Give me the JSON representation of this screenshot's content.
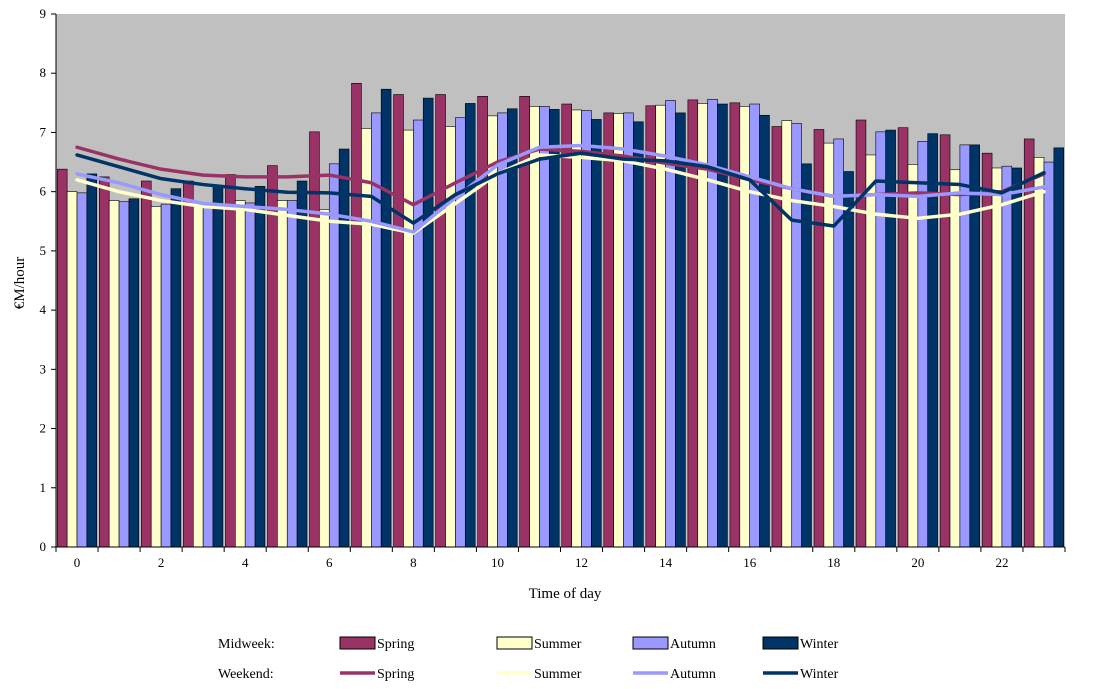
{
  "chart_data": {
    "type": "bar",
    "xlabel": "Time of day",
    "ylabel": "€M/hour",
    "ylim": [
      0,
      9
    ],
    "yticks": [
      "0",
      "1",
      "2",
      "3",
      "4",
      "5",
      "6",
      "7",
      "8",
      "9"
    ],
    "x": [
      0,
      1,
      2,
      3,
      4,
      5,
      6,
      7,
      8,
      9,
      10,
      11,
      12,
      13,
      14,
      15,
      16,
      17,
      18,
      19,
      20,
      21,
      22,
      23
    ],
    "xtick_labels": [
      "0",
      "2",
      "4",
      "6",
      "8",
      "10",
      "12",
      "14",
      "16",
      "18",
      "20",
      "22"
    ],
    "grid": false,
    "plot_background": "#c0c0c0",
    "bar_series": [
      {
        "name": "Spring",
        "color": "#993366",
        "values": [
          6.38,
          6.25,
          6.18,
          6.18,
          6.29,
          6.44,
          7.01,
          7.83,
          7.64,
          7.64,
          7.61,
          7.61,
          7.48,
          7.33,
          7.45,
          7.55,
          7.5,
          7.1,
          7.05,
          7.21,
          7.08,
          6.96,
          6.65,
          6.89
        ]
      },
      {
        "name": "Summer",
        "color": "#ffffcc",
        "values": [
          6.0,
          5.85,
          5.75,
          5.75,
          5.85,
          5.85,
          5.7,
          7.07,
          7.04,
          7.1,
          7.28,
          7.44,
          7.38,
          7.32,
          7.46,
          7.49,
          7.44,
          7.2,
          6.82,
          6.62,
          6.46,
          6.37,
          6.4,
          6.58
        ]
      },
      {
        "name": "Autumn",
        "color": "#9999ff",
        "values": [
          5.98,
          5.83,
          5.79,
          5.74,
          5.81,
          5.85,
          6.47,
          7.33,
          7.21,
          7.25,
          7.33,
          7.44,
          7.37,
          7.33,
          7.54,
          7.56,
          7.48,
          7.15,
          6.89,
          7.01,
          6.85,
          6.79,
          6.43,
          6.5
        ]
      },
      {
        "name": "Winter",
        "color": "#003366",
        "values": [
          6.3,
          5.88,
          6.05,
          6.09,
          6.09,
          6.18,
          6.72,
          7.73,
          7.58,
          7.49,
          7.4,
          7.39,
          7.22,
          7.18,
          7.33,
          7.48,
          7.29,
          6.47,
          6.34,
          7.04,
          6.98,
          6.79,
          6.4,
          6.74
        ]
      }
    ],
    "line_series": [
      {
        "name": "Spring",
        "color": "#993366",
        "values": [
          6.75,
          6.55,
          6.38,
          6.28,
          6.25,
          6.25,
          6.28,
          6.15,
          5.78,
          6.15,
          6.5,
          6.72,
          6.68,
          6.6,
          6.48,
          6.38,
          6.2,
          6.05,
          5.92,
          5.95,
          5.98,
          5.95,
          6.0,
          6.3
        ]
      },
      {
        "name": "Summer",
        "color": "#ffffcc",
        "values": [
          6.2,
          6.0,
          5.85,
          5.75,
          5.7,
          5.6,
          5.5,
          5.45,
          5.3,
          5.8,
          6.3,
          6.62,
          6.58,
          6.52,
          6.38,
          6.2,
          6.0,
          5.85,
          5.75,
          5.62,
          5.55,
          5.62,
          5.78,
          6.0
        ]
      },
      {
        "name": "Autumn",
        "color": "#9999ff",
        "values": [
          6.3,
          6.15,
          5.95,
          5.8,
          5.75,
          5.7,
          5.62,
          5.5,
          5.32,
          5.9,
          6.45,
          6.75,
          6.78,
          6.72,
          6.6,
          6.45,
          6.25,
          6.05,
          5.92,
          5.95,
          5.92,
          5.98,
          5.95,
          6.08
        ]
      },
      {
        "name": "Winter",
        "color": "#003366",
        "values": [
          6.62,
          6.42,
          6.22,
          6.12,
          6.05,
          5.99,
          5.98,
          5.92,
          5.47,
          5.95,
          6.3,
          6.55,
          6.65,
          6.55,
          6.52,
          6.42,
          6.2,
          5.52,
          5.42,
          6.18,
          6.15,
          6.12,
          5.98,
          6.32
        ]
      }
    ],
    "legend": {
      "placement": "bottom",
      "rows": [
        {
          "label": "Midweek:",
          "kind": "bar",
          "items": [
            "Spring",
            "Summer",
            "Autumn",
            "Winter"
          ]
        },
        {
          "label": "Weekend:",
          "kind": "line",
          "items": [
            "Spring",
            "Summer",
            "Autumn",
            "Winter"
          ]
        }
      ]
    }
  }
}
